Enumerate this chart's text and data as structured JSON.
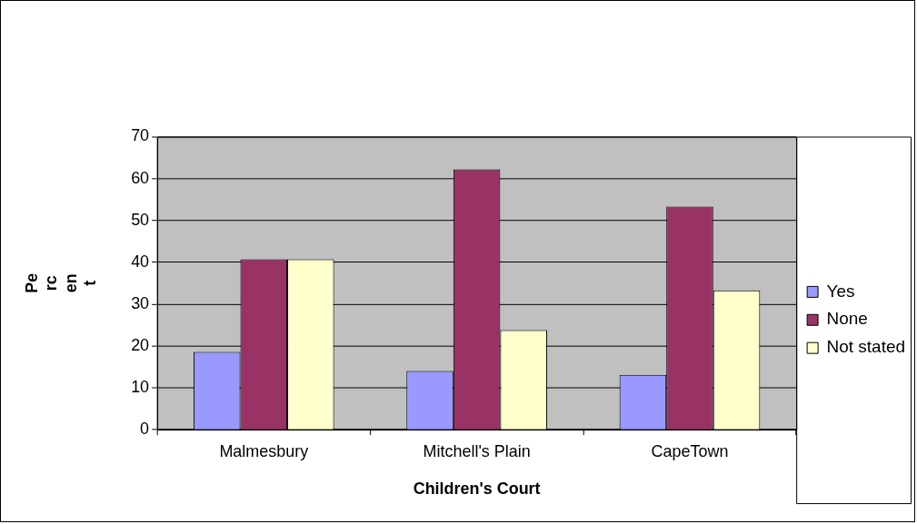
{
  "chart_data": {
    "type": "bar",
    "xlabel": "Children's Court",
    "ylabel": "Percent",
    "categories": [
      "Malmesbury",
      "Mitchell's Plain",
      "CapeTown"
    ],
    "series": [
      {
        "name": "Yes",
        "color": "#9999ff",
        "values": [
          18.6,
          14,
          13.1
        ]
      },
      {
        "name": "None",
        "color": "#993366",
        "values": [
          40.7,
          62.2,
          53.3
        ]
      },
      {
        "name": "Not stated",
        "color": "#ffffcc",
        "values": [
          40.7,
          23.8,
          33.3
        ]
      }
    ],
    "ylim": [
      0,
      70
    ],
    "yticks": [
      0,
      10,
      20,
      30,
      40,
      50,
      60,
      70
    ],
    "grid": "y",
    "legend": "right"
  }
}
